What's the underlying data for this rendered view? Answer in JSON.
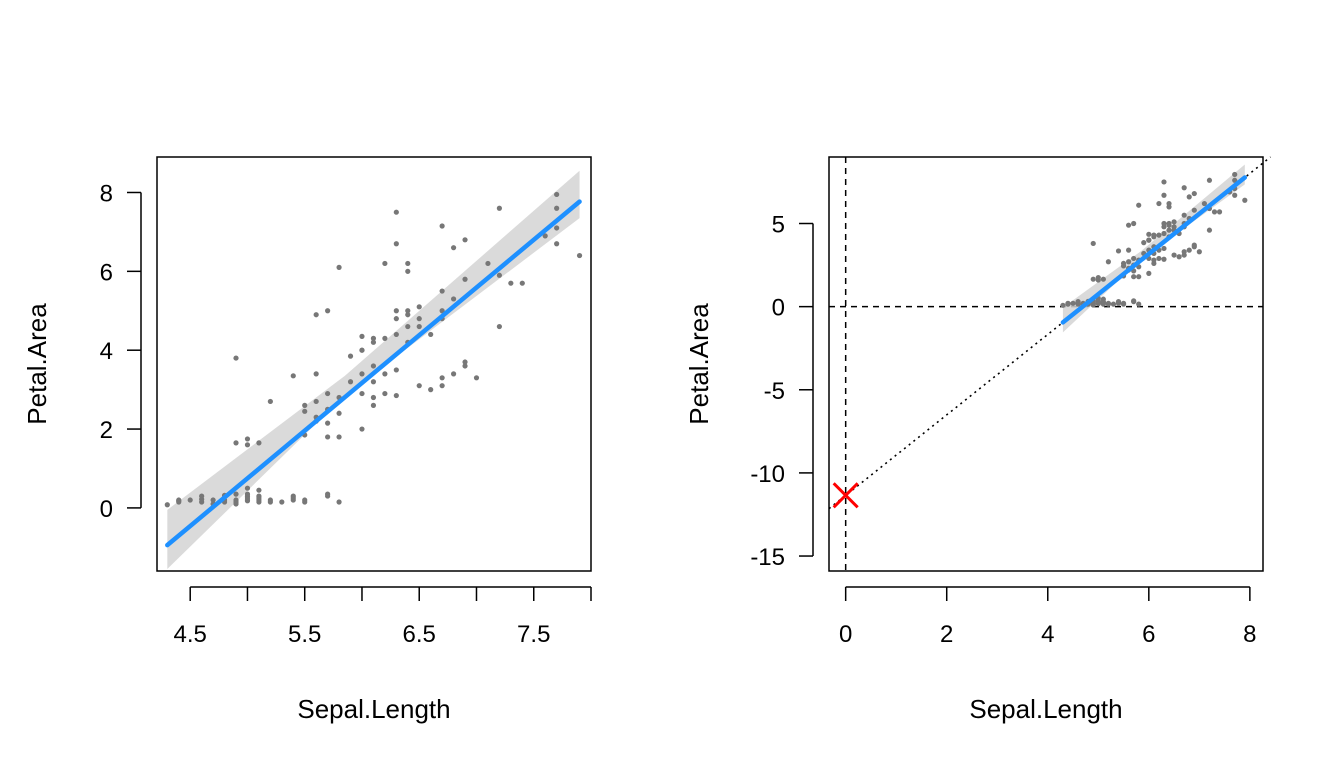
{
  "chart_data": [
    {
      "type": "scatter",
      "xlabel": "Sepal.Length",
      "ylabel": "Petal.Area",
      "xlim": [
        4.21,
        8.0
      ],
      "ylim": [
        -1.6,
        8.9
      ],
      "xticks": [
        4.5,
        5.5,
        6.5,
        7.5
      ],
      "xtick_labels": [
        "4.5",
        "5.5",
        "6.5",
        "7.5"
      ],
      "xminor_ticks": [
        5.0,
        6.0,
        7.0,
        8.0
      ],
      "yticks": [
        0,
        2,
        4,
        6,
        8
      ],
      "ytick_labels": [
        "0",
        "2",
        "4",
        "6",
        "8"
      ],
      "grid": false,
      "colors": {
        "points": "#777777",
        "fit": "#1e90ff",
        "band": "#d3d3d3"
      },
      "fit_line": {
        "intercept": -11.35,
        "slope": 2.42,
        "x_range": [
          4.3,
          7.9
        ]
      },
      "confidence_band": [
        {
          "x": 4.3,
          "lower": -1.55,
          "upper": -0.05
        },
        {
          "x": 5.85,
          "lower": 2.85,
          "upper": 3.35
        },
        {
          "x": 7.9,
          "lower": 7.35,
          "upper": 8.55
        }
      ],
      "points": [
        [
          4.3,
          0.08
        ],
        [
          4.4,
          0.2
        ],
        [
          4.4,
          0.15
        ],
        [
          4.4,
          0.18
        ],
        [
          4.5,
          0.2
        ],
        [
          4.6,
          0.22
        ],
        [
          4.6,
          0.15
        ],
        [
          4.6,
          0.3
        ],
        [
          4.7,
          0.2
        ],
        [
          4.7,
          0.1
        ],
        [
          4.8,
          0.2
        ],
        [
          4.8,
          0.28
        ],
        [
          4.8,
          0.15
        ],
        [
          4.8,
          0.32
        ],
        [
          4.9,
          0.1
        ],
        [
          4.9,
          0.2
        ],
        [
          4.9,
          0.15
        ],
        [
          4.9,
          0.35
        ],
        [
          4.9,
          1.65
        ],
        [
          4.9,
          3.8
        ],
        [
          5.0,
          0.2
        ],
        [
          5.0,
          0.3
        ],
        [
          5.0,
          0.25
        ],
        [
          5.0,
          0.5
        ],
        [
          5.0,
          0.35
        ],
        [
          5.0,
          0.18
        ],
        [
          5.0,
          1.75
        ],
        [
          5.0,
          1.6
        ],
        [
          5.1,
          0.2
        ],
        [
          5.1,
          0.3
        ],
        [
          5.1,
          0.25
        ],
        [
          5.1,
          0.45
        ],
        [
          5.1,
          0.15
        ],
        [
          5.1,
          1.65
        ],
        [
          5.2,
          0.2
        ],
        [
          5.2,
          0.15
        ],
        [
          5.2,
          2.7
        ],
        [
          5.3,
          0.15
        ],
        [
          5.4,
          0.2
        ],
        [
          5.4,
          0.3
        ],
        [
          5.4,
          0.25
        ],
        [
          5.4,
          3.35
        ],
        [
          5.5,
          0.2
        ],
        [
          5.5,
          0.15
        ],
        [
          5.5,
          1.85
        ],
        [
          5.5,
          2.6
        ],
        [
          5.5,
          2.45
        ],
        [
          5.6,
          2.7
        ],
        [
          5.6,
          2.2
        ],
        [
          5.6,
          3.4
        ],
        [
          5.6,
          2.3
        ],
        [
          5.6,
          4.9
        ],
        [
          5.7,
          0.3
        ],
        [
          5.7,
          0.35
        ],
        [
          5.7,
          2.5
        ],
        [
          5.7,
          2.9
        ],
        [
          5.7,
          2.15
        ],
        [
          5.7,
          1.8
        ],
        [
          5.7,
          5.0
        ],
        [
          5.8,
          0.15
        ],
        [
          5.8,
          2.4
        ],
        [
          5.8,
          1.8
        ],
        [
          5.8,
          6.1
        ],
        [
          5.8,
          2.8
        ],
        [
          5.9,
          3.2
        ],
        [
          5.9,
          3.85
        ],
        [
          6.0,
          2.9
        ],
        [
          6.0,
          3.4
        ],
        [
          6.0,
          4.0
        ],
        [
          6.0,
          2.0
        ],
        [
          6.0,
          4.35
        ],
        [
          6.0,
          4.0
        ],
        [
          6.1,
          3.6
        ],
        [
          6.1,
          2.8
        ],
        [
          6.1,
          2.6
        ],
        [
          6.1,
          4.2
        ],
        [
          6.1,
          4.3
        ],
        [
          6.1,
          3.2
        ],
        [
          6.2,
          3.4
        ],
        [
          6.2,
          4.3
        ],
        [
          6.2,
          6.2
        ],
        [
          6.2,
          2.9
        ],
        [
          6.3,
          4.4
        ],
        [
          6.3,
          3.5
        ],
        [
          6.3,
          4.8
        ],
        [
          6.3,
          6.7
        ],
        [
          6.3,
          5.0
        ],
        [
          6.3,
          7.5
        ],
        [
          6.3,
          2.85
        ],
        [
          6.4,
          4.6
        ],
        [
          6.4,
          5.0
        ],
        [
          6.4,
          6.0
        ],
        [
          6.4,
          6.2
        ],
        [
          6.4,
          4.2
        ],
        [
          6.4,
          4.9
        ],
        [
          6.5,
          4.6
        ],
        [
          6.5,
          3.1
        ],
        [
          6.5,
          5.1
        ],
        [
          6.5,
          4.8
        ],
        [
          6.6,
          4.4
        ],
        [
          6.6,
          3.0
        ],
        [
          6.7,
          3.1
        ],
        [
          6.7,
          4.8
        ],
        [
          6.7,
          5.0
        ],
        [
          6.7,
          3.3
        ],
        [
          6.7,
          5.5
        ],
        [
          6.7,
          7.15
        ],
        [
          6.8,
          6.6
        ],
        [
          6.8,
          3.4
        ],
        [
          6.8,
          5.3
        ],
        [
          6.9,
          3.6
        ],
        [
          6.9,
          5.8
        ],
        [
          6.9,
          6.8
        ],
        [
          6.9,
          3.7
        ],
        [
          7.0,
          3.3
        ],
        [
          7.1,
          6.2
        ],
        [
          7.2,
          7.6
        ],
        [
          7.2,
          4.6
        ],
        [
          7.2,
          5.9
        ],
        [
          7.3,
          5.7
        ],
        [
          7.4,
          5.7
        ],
        [
          7.6,
          6.9
        ],
        [
          7.7,
          7.6
        ],
        [
          7.7,
          6.7
        ],
        [
          7.7,
          7.95
        ],
        [
          7.7,
          7.1
        ],
        [
          7.9,
          6.4
        ]
      ]
    },
    {
      "type": "scatter",
      "xlabel": "Sepal.Length",
      "ylabel": "Petal.Area",
      "xlim": [
        -0.33,
        8.26
      ],
      "ylim": [
        -15.9,
        9.0
      ],
      "xticks": [
        0,
        2,
        4,
        6,
        8
      ],
      "xtick_labels": [
        "0",
        "2",
        "4",
        "6",
        "8"
      ],
      "yticks": [
        -15,
        -10,
        -5,
        0,
        5
      ],
      "ytick_labels": [
        "-15",
        "-10",
        "-5",
        "0",
        "5"
      ],
      "grid": false,
      "colors": {
        "points": "#777777",
        "fit": "#1e90ff",
        "band": "#d3d3d3",
        "marker": "#ff0000",
        "reference": "#000000"
      },
      "reference_lines": {
        "vertical_x": 0,
        "horizontal_y": 0,
        "style": "dashed"
      },
      "extrapolated_line": {
        "intercept": -11.35,
        "slope": 2.42,
        "style": "dotted"
      },
      "intercept_marker": {
        "x": 0,
        "y": -11.35,
        "shape": "x"
      },
      "fit_line": {
        "intercept": -11.35,
        "slope": 2.42,
        "x_range": [
          4.3,
          7.9
        ]
      },
      "confidence_band": [
        {
          "x": 4.3,
          "lower": -1.55,
          "upper": -0.05
        },
        {
          "x": 5.85,
          "lower": 2.85,
          "upper": 3.35
        },
        {
          "x": 7.9,
          "lower": 7.35,
          "upper": 8.55
        }
      ]
    }
  ]
}
